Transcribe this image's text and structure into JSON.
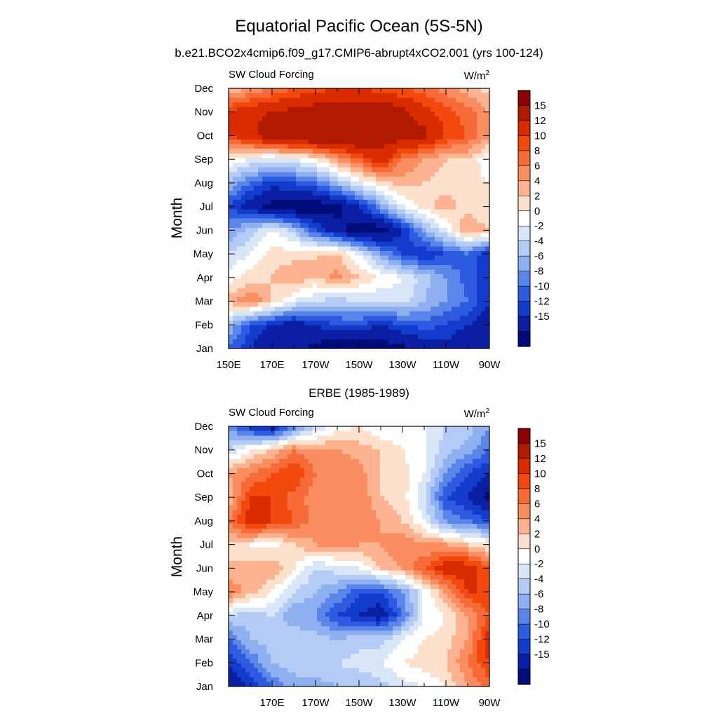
{
  "figure": {
    "title": "Equatorial Pacific Ocean (5S-5N)",
    "subtitle_top": "b.e21.BCO2x4cmip6.f09_g17.CMIP6-abrupt4xCO2.001 (yrs 100-124)",
    "subtitle_bottom": "ERBE (1985-1989)"
  },
  "colorbar": {
    "labels": [
      "15",
      "12",
      "10",
      "8",
      "6",
      "4",
      "2",
      "0",
      "-2",
      "-4",
      "-6",
      "-8",
      "-10",
      "-12",
      "-15"
    ],
    "colors": [
      "#8b0000",
      "#b21a00",
      "#d92d00",
      "#f24a0d",
      "#f76b38",
      "#fb8e60",
      "#fdb38f",
      "#fde1cc",
      "#ffffff",
      "#d8e6f8",
      "#b4ccf5",
      "#8fb0f0",
      "#5a86ea",
      "#2e5ce0",
      "#123ccc",
      "#0a1fa3",
      "#000c7a"
    ]
  },
  "chart_data": [
    {
      "type": "heatmap",
      "panel": "model",
      "left_label": "SW Cloud Forcing",
      "units": "W/m",
      "units_sup": "2",
      "ylabel": "Month",
      "xlabel": "",
      "x_ticks": [
        "150E",
        "170E",
        "170W",
        "150W",
        "130W",
        "110W",
        "90W"
      ],
      "y_ticks": [
        "Jan",
        "Feb",
        "Mar",
        "Apr",
        "May",
        "Jun",
        "Jul",
        "Aug",
        "Sep",
        "Oct",
        "Nov",
        "Dec"
      ],
      "x_range_lon_e": [
        150,
        270
      ],
      "y_range_month": [
        1,
        12
      ],
      "grid": [
        [
          -8,
          -12,
          -15,
          -14,
          -16,
          -18,
          -18,
          -17,
          -16,
          -14,
          -13,
          -15,
          -14
        ],
        [
          -4,
          -10,
          -12,
          -14,
          -12,
          -10,
          -10,
          -12,
          -10,
          -9,
          -10,
          -12,
          -14
        ],
        [
          5,
          8,
          4,
          0,
          -2,
          -3,
          -2,
          -2,
          -1,
          -4,
          -6,
          -8,
          -12
        ],
        [
          1,
          3,
          4,
          6,
          4,
          7,
          4,
          2,
          0,
          -3,
          -6,
          -9,
          -12
        ],
        [
          -2,
          0,
          3,
          3,
          4,
          4,
          0,
          -6,
          -10,
          -12,
          -10,
          -8,
          -12
        ],
        [
          -6,
          -3,
          0,
          -3,
          -10,
          -14,
          -17,
          -17,
          -12,
          -5,
          0,
          6,
          4
        ],
        [
          -10,
          -14,
          -16,
          -18,
          -17,
          -16,
          -12,
          -6,
          0,
          3,
          5,
          3,
          2
        ],
        [
          -4,
          -8,
          -11,
          -10,
          -8,
          -4,
          0,
          3,
          5,
          4,
          3,
          3,
          2
        ],
        [
          2,
          0,
          -1,
          0,
          2,
          6,
          10,
          14,
          8,
          6,
          4,
          4,
          0
        ],
        [
          12,
          14,
          18,
          19,
          20,
          20,
          20,
          17,
          17,
          16,
          12,
          10,
          6
        ],
        [
          12,
          14,
          15,
          16,
          17,
          18,
          18,
          18,
          16,
          13,
          11,
          9,
          6
        ],
        [
          4,
          6,
          8,
          10,
          11,
          12,
          12,
          11,
          10,
          9,
          7,
          5,
          3
        ]
      ]
    },
    {
      "type": "heatmap",
      "panel": "erbe",
      "left_label": "SW Cloud Forcing",
      "units": "W/m",
      "units_sup": "2",
      "ylabel": "Month",
      "xlabel": "",
      "x_ticks": [
        "170E",
        "170W",
        "150W",
        "130W",
        "110W",
        "90W"
      ],
      "y_ticks": [
        "Jan",
        "Feb",
        "Mar",
        "Apr",
        "May",
        "Jun",
        "Jul",
        "Aug",
        "Sep",
        "Oct",
        "Nov",
        "Dec"
      ],
      "x_range_lon_e": [
        150,
        270
      ],
      "y_range_month": [
        1,
        12
      ],
      "grid": [
        [
          -14,
          -12,
          -8,
          -5,
          -5,
          -4,
          -4,
          -3,
          -1,
          0,
          2,
          6,
          9
        ],
        [
          -12,
          -8,
          -4,
          -3,
          -2,
          -2,
          -1,
          0,
          2,
          3,
          4,
          8,
          12
        ],
        [
          -8,
          -4,
          -3,
          -2,
          -3,
          -4,
          -3,
          -3,
          0,
          2,
          3,
          6,
          14
        ],
        [
          -2,
          -3,
          -2,
          -6,
          -6,
          -10,
          -12,
          -14,
          -8,
          0,
          2,
          6,
          10
        ],
        [
          8,
          5,
          2,
          -2,
          -4,
          -6,
          -10,
          -10,
          -6,
          0,
          6,
          12,
          12
        ],
        [
          4,
          5,
          6,
          2,
          -2,
          -1,
          0,
          4,
          6,
          10,
          14,
          14,
          10
        ],
        [
          4,
          2,
          1,
          4,
          6,
          7,
          6,
          6,
          8,
          6,
          6,
          4,
          2
        ],
        [
          8,
          14,
          12,
          10,
          7,
          8,
          8,
          6,
          4,
          0,
          -6,
          -8,
          -10
        ],
        [
          4,
          12,
          12,
          9,
          7,
          7,
          8,
          4,
          3,
          -2,
          -10,
          -12,
          -16
        ],
        [
          6,
          8,
          10,
          12,
          8,
          8,
          7,
          4,
          3,
          0,
          -6,
          -10,
          -12
        ],
        [
          -2,
          2,
          4,
          8,
          6,
          6,
          5,
          4,
          2,
          0,
          -3,
          -5,
          -8
        ],
        [
          -6,
          -12,
          -14,
          -8,
          -2,
          1,
          2,
          0,
          0,
          0,
          -2,
          -3,
          -6
        ]
      ]
    }
  ]
}
